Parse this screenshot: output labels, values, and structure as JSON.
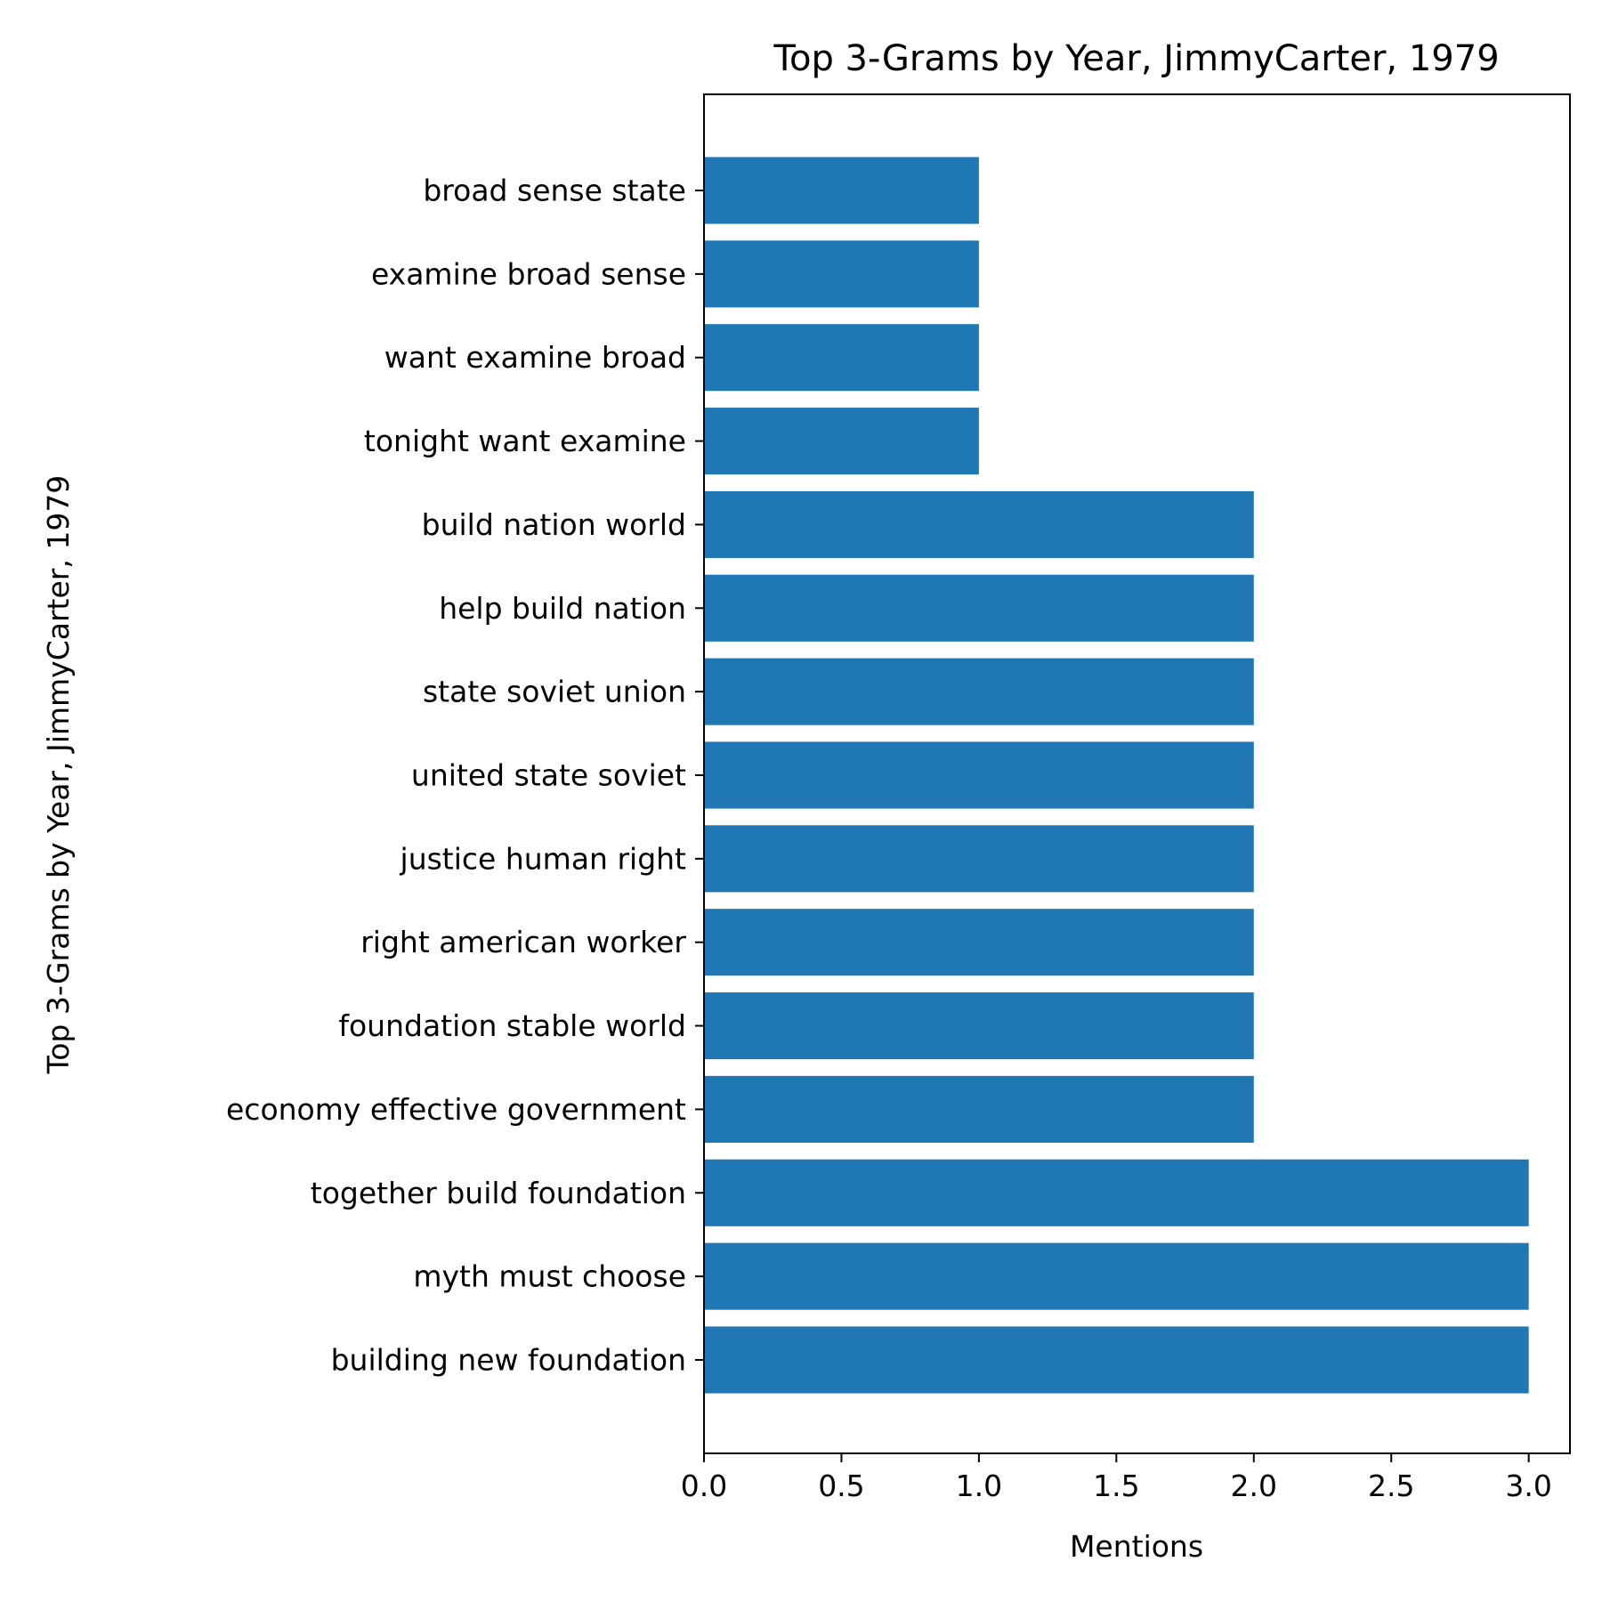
{
  "chart_data": {
    "type": "bar",
    "orientation": "horizontal",
    "title": "Top 3-Grams by Year, JimmyCarter, 1979",
    "xlabel": "Mentions",
    "ylabel": "Top 3-Grams by Year, JimmyCarter, 1979",
    "categories": [
      "building new foundation",
      "myth must choose",
      "together build foundation",
      "economy effective government",
      "foundation stable world",
      "right american worker",
      "justice human right",
      "united state soviet",
      "state soviet union",
      "help build nation",
      "build nation world",
      "tonight want examine",
      "want examine broad",
      "examine broad sense",
      "broad sense state"
    ],
    "values": [
      3,
      3,
      3,
      2,
      2,
      2,
      2,
      2,
      2,
      2,
      2,
      1,
      1,
      1,
      1
    ],
    "xlim": [
      0,
      3.15
    ],
    "xticks": [
      {
        "value": 0.0,
        "label": "0.0"
      },
      {
        "value": 0.5,
        "label": "0.5"
      },
      {
        "value": 1.0,
        "label": "1.0"
      },
      {
        "value": 1.5,
        "label": "1.5"
      },
      {
        "value": 2.0,
        "label": "2.0"
      },
      {
        "value": 2.5,
        "label": "2.5"
      },
      {
        "value": 3.0,
        "label": "3.0"
      }
    ],
    "bar_color": "#1f77b4",
    "grid": false,
    "legend": "none"
  }
}
